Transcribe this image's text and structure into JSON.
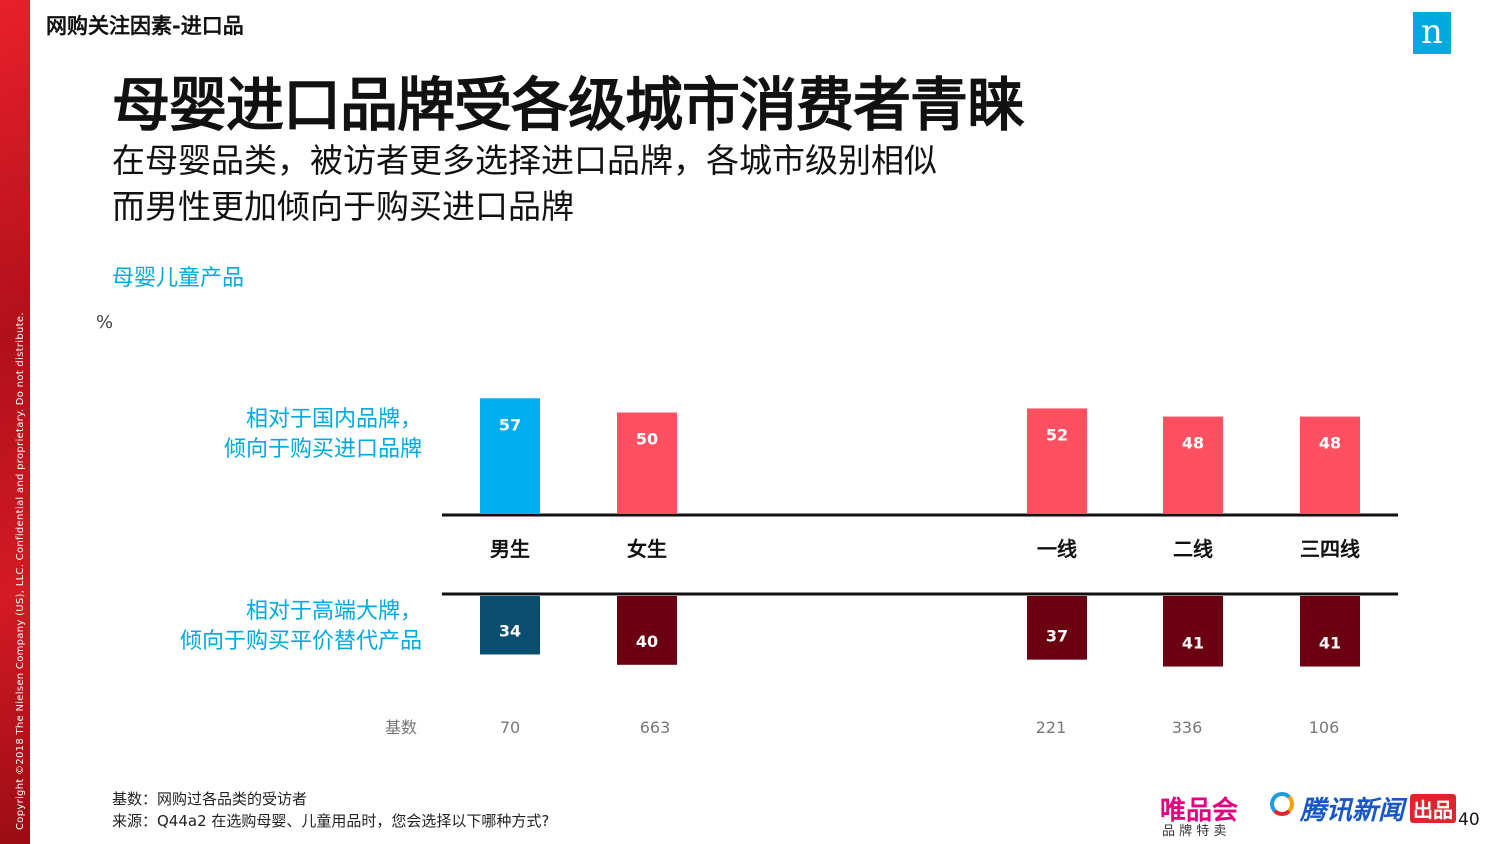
{
  "section_title": "网购关注因素-进口品",
  "copyright": "Copyright ©2018 The Nielsen Company (US), LLC. Confidential and proprietary. Do not distribute.",
  "logo": "n",
  "title": "母婴进口品牌受各级城市消费者青睐",
  "subtitle": [
    "在母婴品类，被访者更多选择进口品牌，各城市级别相似",
    "而男性更加倾向于购买进口品牌"
  ],
  "chart_data": {
    "type": "bar",
    "title": "母婴儿童产品",
    "ylabel": "%",
    "categories": [
      "男生",
      "女生",
      "一线",
      "二线",
      "三四线"
    ],
    "series": [
      {
        "name": "相对于国内品牌，倾向于购买进口品牌",
        "values": [
          57,
          50,
          52,
          48,
          48
        ],
        "colors": [
          "#00aeef",
          "#ff5062",
          "#ff5062",
          "#ff5062",
          "#ff5062"
        ]
      },
      {
        "name": "相对于高端大牌，倾向于购买平价替代产品",
        "values": [
          34,
          40,
          37,
          41,
          41
        ],
        "colors": [
          "#0b4d6e",
          "#6b0010",
          "#6b0010",
          "#6b0010",
          "#6b0010"
        ]
      }
    ],
    "base_label": "基数",
    "base": [
      70,
      663,
      221,
      336,
      106
    ]
  },
  "row_labels": [
    [
      "相对于国内品牌，",
      "倾向于购买进口品牌"
    ],
    [
      "相对于高端大牌，",
      "倾向于购买平价替代产品"
    ]
  ],
  "footnotes": [
    "基数：网购过各品类的受访者",
    "来源：Q44a2 在选购母婴、儿童用品时，您会选择以下哪种方式?"
  ],
  "brands": {
    "vip": "唯品会",
    "vip_sub": "品 牌 特 卖",
    "tencent": "腾讯新闻",
    "badge": "出品"
  },
  "page_number": "40"
}
